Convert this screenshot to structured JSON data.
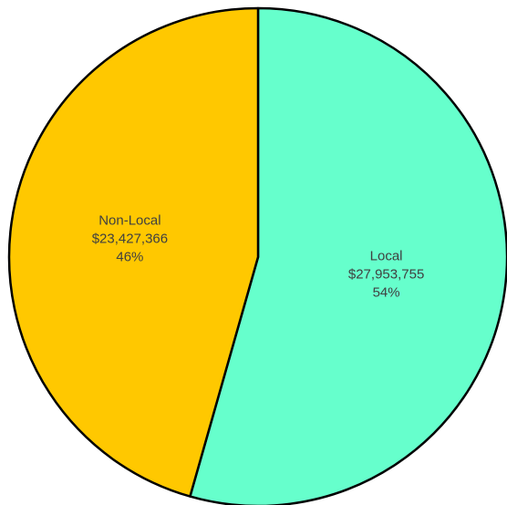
{
  "chart_data": {
    "type": "pie",
    "title": "",
    "slices": [
      {
        "name": "Local",
        "value": 27953755,
        "value_label": "$27,953,755",
        "percent": 54,
        "percent_label": "54%",
        "color": "#66FFCC"
      },
      {
        "name": "Non-Local",
        "value": 23427366,
        "value_label": "$23,427,366",
        "percent": 46,
        "percent_label": "46%",
        "color": "#FFC800"
      }
    ],
    "start_angle": "12 o'clock",
    "direction": "clockwise",
    "outline_color": "#000000",
    "legend": "none"
  }
}
